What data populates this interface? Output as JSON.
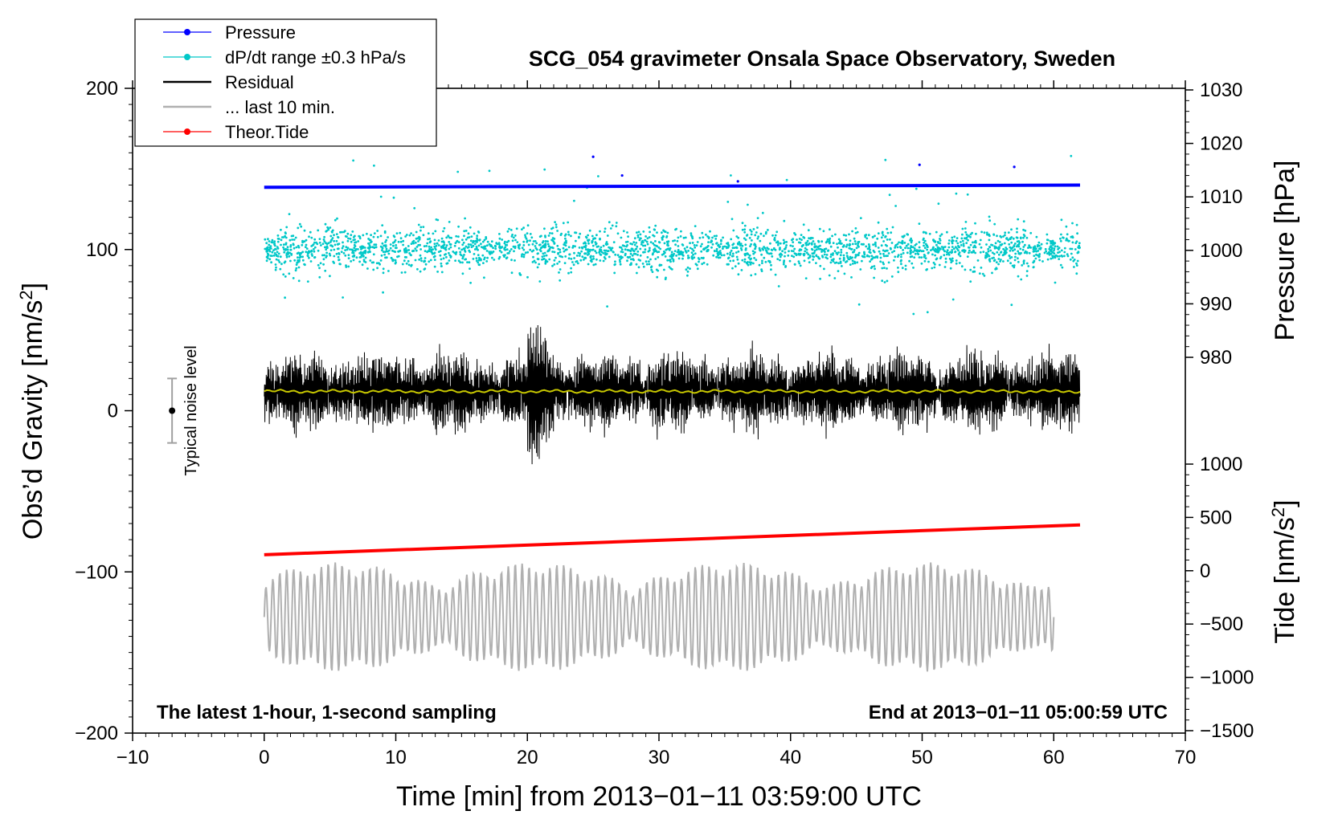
{
  "chart_data": {
    "type": "line",
    "title": "SCG_054 gravimeter Onsala Space Observatory, Sweden",
    "xlabel": "Time [min] from 2013−01−11 03:59:00 UTC",
    "ylabel_left_prefix": "Obs’d Gravity [nm/s",
    "ylabel_left_sup": "2",
    "ylabel_left_suffix": "]",
    "ylabel_pressure": "Pressure [hPa]",
    "ylabel_tide_prefix": "Tide [nm/s",
    "ylabel_tide_sup": "2",
    "ylabel_tide_suffix": "]",
    "xlim": [
      -10,
      70
    ],
    "ylim": [
      -200,
      200
    ],
    "pressure_lim": [
      980,
      1030
    ],
    "tide_lim": [
      -1500,
      1000
    ],
    "x_ticks": [
      -10,
      0,
      10,
      20,
      30,
      40,
      50,
      60,
      70
    ],
    "x_tick_labels": [
      "−10",
      "0",
      "10",
      "20",
      "30",
      "40",
      "50",
      "60",
      "70"
    ],
    "y_ticks": [
      -200,
      -100,
      0,
      100,
      200
    ],
    "y_tick_labels": [
      "−200",
      "−100",
      "0",
      "100",
      "200"
    ],
    "pressure_ticks": [
      980,
      990,
      1000,
      1010,
      1020,
      1030
    ],
    "pressure_tick_labels": [
      "980",
      "990",
      "1000",
      "1010",
      "1020",
      "1030"
    ],
    "tide_ticks": [
      -1500,
      -1000,
      -500,
      0,
      500,
      1000
    ],
    "tide_tick_labels": [
      "−1500",
      "−1000",
      "−500",
      "0",
      "500",
      "1000"
    ],
    "legend": {
      "position": "top-left",
      "entries": [
        {
          "label": "Pressure",
          "color": "#0000ff",
          "style": "line-dot"
        },
        {
          "label": "dP/dt range ±0.3 hPa/s",
          "color": "#00c8c8",
          "style": "line-dot"
        },
        {
          "label": "Residual",
          "color": "#000000",
          "style": "line"
        },
        {
          "label": "... last 10 min.",
          "color": "#b0b0b0",
          "style": "line"
        },
        {
          "label": "Theor.Tide",
          "color": "#ff0000",
          "style": "line-dot"
        }
      ]
    },
    "series": [
      {
        "name": "Pressure",
        "axis": "pressure_hPa",
        "color": "#0000ff",
        "x": [
          0,
          62
        ],
        "values": [
          1011.8,
          1012.2
        ]
      },
      {
        "name": "dP/dt range ±0.3 hPa/s",
        "axis": "gravity_nm_s2",
        "color": "#00c8c8",
        "x_range": [
          0,
          62
        ],
        "center": 100,
        "typical_spread": 10,
        "outlier_range": [
          55,
          158
        ]
      },
      {
        "name": "Residual",
        "axis": "gravity_nm_s2",
        "color": "#000000",
        "x_range": [
          0,
          62
        ],
        "center": 12,
        "envelope": [
          -42,
          62
        ]
      },
      {
        "name": "Residual smoothed",
        "axis": "gravity_nm_s2",
        "color": "#c8c800",
        "x": [
          0,
          62
        ],
        "values": [
          12,
          12
        ]
      },
      {
        "name": "... last 10 min.",
        "axis": "gravity_nm_s2",
        "color": "#b0b0b0",
        "x_range": [
          0,
          60
        ],
        "center": -128,
        "envelope": [
          -168,
          -88
        ]
      },
      {
        "name": "Theor.Tide",
        "axis": "tide_nm_s2",
        "color": "#ff0000",
        "x": [
          0,
          62
        ],
        "values": [
          150,
          430
        ]
      }
    ],
    "noise_marker": {
      "label": "Typical noise level",
      "x": -7,
      "center": 0,
      "range": [
        -20,
        20
      ]
    },
    "annotations": {
      "bottom_left": "The latest 1-hour, 1-second sampling",
      "bottom_right": "End at 2013−01−11 05:00:59 UTC"
    }
  }
}
